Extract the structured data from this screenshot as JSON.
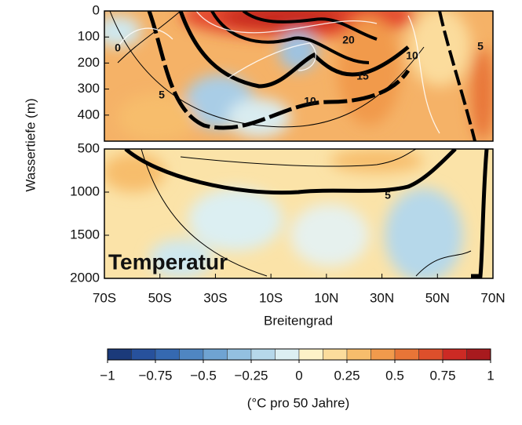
{
  "chart_data": {
    "type": "contour",
    "title": "Temperatur",
    "y_label": "Wassertiefe (m)",
    "x_label": "Breitengrad",
    "xlim": [
      -70,
      70
    ],
    "xticks": [
      {
        "value": -70,
        "label": "70S"
      },
      {
        "value": -50,
        "label": "50S"
      },
      {
        "value": -30,
        "label": "30S"
      },
      {
        "value": -10,
        "label": "10S"
      },
      {
        "value": 10,
        "label": "10N"
      },
      {
        "value": 30,
        "label": "30N"
      },
      {
        "value": 50,
        "label": "50N"
      },
      {
        "value": 70,
        "label": "70N"
      }
    ],
    "panels": [
      {
        "ylim": [
          0,
          500
        ],
        "yticks": [
          0,
          100,
          200,
          300,
          400
        ]
      },
      {
        "ylim": [
          500,
          2000
        ],
        "yticks": [
          500,
          1000,
          1500,
          2000
        ]
      }
    ],
    "contour_labels": [
      0,
      5,
      10,
      15,
      20,
      10,
      5,
      5
    ],
    "colorbar": {
      "label": "(°C pro 50 Jahre)",
      "clim": [
        -1,
        1
      ],
      "ticks": [
        {
          "value": -1,
          "label": "−1"
        },
        {
          "value": -0.75,
          "label": "−0.75"
        },
        {
          "value": -0.5,
          "label": "−0.5"
        },
        {
          "value": -0.25,
          "label": "−0.25"
        },
        0,
        0.25,
        0.5,
        0.75,
        1
      ],
      "colors": [
        "#1b3a7a",
        "#27519c",
        "#3569b1",
        "#4f86c2",
        "#6fa3d2",
        "#93c0e0",
        "#b6d8ea",
        "#dceff2",
        "#fdf2c8",
        "#fbdc9c",
        "#f7bd6c",
        "#f19a4c",
        "#e87537",
        "#dd4f2b",
        "#cc2a24",
        "#a81a1e"
      ]
    }
  }
}
